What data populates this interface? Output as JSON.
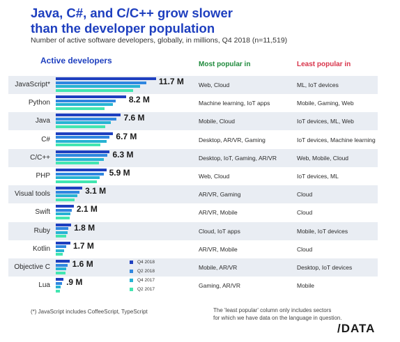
{
  "title_line1": "Java, C#, and C/C++ grow slower",
  "title_line2": "than the developer population",
  "subtitle": "Number of active software developers, globally, in millions, Q4 2018 (n=11,519)",
  "headers": {
    "active": "Active developers",
    "most": "Most popular in",
    "least": "Least popular in"
  },
  "colors": {
    "q4_2018": "#1e3fbf",
    "q2_2018": "#2f86e0",
    "q4_2017": "#27b3d3",
    "q2_2017": "#42e6b1",
    "row_bg": "#e9edf3"
  },
  "chart_data": {
    "type": "bar",
    "orientation": "horizontal",
    "title": "Java, C#, and C/C++ grow slower than the developer population",
    "subtitle": "Number of active software developers, globally, in millions, Q4 2018 (n=11,519)",
    "categories": [
      "JavaScript*",
      "Python",
      "Java",
      "C#",
      "C/C++",
      "PHP",
      "Visual tools",
      "Swift",
      "Ruby",
      "Kotlin",
      "Objective C",
      "Lua"
    ],
    "value_labels": [
      "11.7 M",
      "8.2 M",
      "7.6 M",
      "6.7 M",
      "6.3 M",
      "5.9 M",
      "3.1 M",
      "2.1 M",
      "1.8 M",
      "1.7 M",
      "1.6 M",
      ".9 M"
    ],
    "series": [
      {
        "name": "Q4 2018",
        "values": [
          11.7,
          8.2,
          7.6,
          6.7,
          6.3,
          5.9,
          3.1,
          2.1,
          1.8,
          1.7,
          1.6,
          0.9
        ]
      },
      {
        "name": "Q2 2018",
        "values": [
          10.6,
          7.0,
          7.1,
          6.3,
          6.0,
          5.6,
          2.8,
          1.9,
          1.5,
          1.2,
          1.4,
          0.7
        ]
      },
      {
        "name": "Q4 2017",
        "values": [
          9.8,
          6.7,
          6.4,
          5.9,
          5.6,
          5.1,
          2.5,
          1.7,
          1.4,
          1.0,
          1.2,
          0.6
        ]
      },
      {
        "name": "Q2 2017",
        "values": [
          9.0,
          5.7,
          5.8,
          5.2,
          5.0,
          4.8,
          2.2,
          1.6,
          1.2,
          0.8,
          1.1,
          0.5
        ]
      }
    ],
    "most_popular_in": [
      "Web, Cloud",
      "Machine learning, IoT apps",
      "Mobile, Cloud",
      "Desktop, AR/VR, Gaming",
      "Desktop, IoT, Gaming, AR/VR",
      "Web, Cloud",
      "AR/VR, Gaming",
      "AR/VR, Mobile",
      "Cloud, IoT apps",
      "AR/VR, Mobile",
      "Mobile, AR/VR",
      "Gaming, AR/VR"
    ],
    "least_popular_in": [
      "ML, IoT devices",
      "Mobile, Gaming, Web",
      "IoT devices, ML, Web",
      "IoT devices, Machine learning",
      "Web, Mobile, Cloud",
      "IoT devices, ML",
      "Cloud",
      "Cloud",
      "Mobile, IoT devices",
      "Cloud",
      "Desktop, IoT devices",
      "Mobile"
    ],
    "legend_placement": "inside-lower-center"
  },
  "footnote_left": "(*) JavaScript includes CoffeeScript, TypeScript",
  "footnote_right_line1": "The 'least popular' column only includes sectors",
  "footnote_right_line2": "for which we have data on the language in question.",
  "logo": "/DATA"
}
